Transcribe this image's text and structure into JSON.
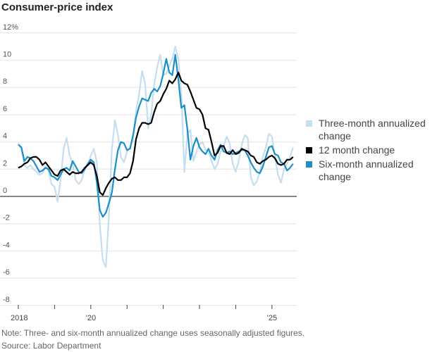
{
  "chart_data": {
    "type": "line",
    "title": "Consumer-price index",
    "xlabel": "",
    "ylabel": "",
    "start": "2018-01",
    "frequency": "monthly",
    "x_ticks": [
      "2018",
      "",
      "'20",
      "",
      "",
      "",
      "",
      "'25"
    ],
    "y_ticks": [
      "-8",
      "-6",
      "-4",
      "-2",
      "0",
      "2",
      "4",
      "6",
      "8",
      "10",
      "12%"
    ],
    "ylim": [
      -8,
      12
    ],
    "grid": true,
    "legend_position": "right",
    "series": [
      {
        "name": "Three-month annualized change",
        "color": "#c5def0",
        "values": [
          3.9,
          3.5,
          2.3,
          2.1,
          2.3,
          2.0,
          1.8,
          1.6,
          1.7,
          2.2,
          1.9,
          0.9,
          0.7,
          -0.4,
          1.2,
          3.5,
          4.3,
          3.0,
          2.4,
          1.2,
          0.9,
          1.2,
          2.0,
          2.3,
          3.0,
          3.5,
          2.5,
          -2.1,
          -4.7,
          -5.2,
          -1.5,
          3.5,
          5.6,
          4.5,
          2.9,
          2.5,
          3.3,
          3.6,
          4.2,
          6.3,
          7.5,
          9.2,
          8.3,
          5.0,
          6.0,
          8.2,
          9.5,
          10.4,
          8.9,
          9.0,
          9.6,
          10.1,
          11.0,
          10.1,
          7.6,
          1.8,
          4.6,
          4.9,
          2.6,
          3.3,
          3.8,
          4.0,
          3.4,
          3.4,
          2.6,
          2.0,
          2.4,
          3.3,
          3.7,
          4.4,
          3.9,
          2.4,
          1.8,
          2.6,
          3.8,
          4.5,
          4.3,
          1.4,
          0.8,
          1.1,
          1.8,
          2.9,
          3.6,
          4.6,
          4.4,
          2.9,
          1.6,
          1.0,
          2.0,
          2.4,
          2.9,
          3.6
        ]
      },
      {
        "name": "12 month change",
        "color": "#000000",
        "values": [
          2.1,
          2.2,
          2.4,
          2.5,
          2.8,
          2.9,
          2.9,
          2.7,
          2.3,
          2.5,
          2.2,
          1.9,
          1.6,
          1.5,
          1.9,
          2.0,
          1.8,
          1.6,
          1.8,
          1.7,
          1.7,
          1.8,
          2.1,
          2.3,
          2.5,
          2.3,
          1.5,
          0.3,
          0.1,
          0.6,
          1.0,
          1.3,
          1.4,
          1.2,
          1.2,
          1.4,
          1.4,
          1.7,
          2.6,
          4.2,
          5.0,
          5.4,
          5.4,
          5.3,
          5.4,
          6.2,
          6.8,
          7.0,
          7.5,
          7.9,
          8.5,
          8.3,
          8.6,
          9.1,
          8.5,
          8.3,
          8.2,
          7.7,
          7.1,
          6.5,
          6.4,
          6.0,
          5.0,
          4.9,
          4.0,
          3.0,
          3.2,
          3.7,
          3.7,
          3.2,
          3.1,
          3.4,
          3.1,
          3.2,
          3.5,
          3.4,
          3.3,
          3.0,
          2.9,
          2.5,
          2.4,
          2.6,
          2.7,
          2.9,
          3.0,
          2.8,
          2.4,
          2.3,
          2.4,
          2.7,
          2.7,
          2.9
        ]
      },
      {
        "name": "Six-month annualized change",
        "color": "#1b8fc6",
        "values": [
          3.8,
          3.6,
          2.6,
          2.9,
          2.8,
          2.6,
          2.2,
          1.8,
          1.9,
          2.1,
          2.0,
          1.5,
          1.4,
          1.2,
          1.6,
          2.0,
          2.1,
          1.9,
          2.6,
          2.2,
          1.8,
          1.7,
          2.0,
          2.4,
          2.7,
          2.5,
          1.0,
          -1.0,
          -1.5,
          -1.2,
          -0.5,
          0.3,
          2.0,
          3.4,
          4.0,
          3.9,
          3.4,
          3.5,
          4.5,
          5.8,
          6.6,
          7.2,
          7.1,
          7.0,
          7.6,
          7.9,
          7.7,
          8.1,
          9.0,
          10.1,
          9.1,
          8.9,
          10.4,
          8.6,
          6.5,
          6.7,
          4.9,
          2.7,
          3.7,
          4.3,
          3.6,
          3.3,
          3.1,
          3.5,
          3.0,
          2.7,
          3.4,
          3.8,
          3.3,
          3.2,
          3.3,
          3.1,
          3.2,
          3.3,
          3.4,
          3.4,
          3.0,
          2.5,
          2.1,
          1.8,
          1.7,
          2.2,
          2.9,
          3.6,
          3.7,
          3.1,
          3.0,
          2.5,
          2.4,
          1.9,
          2.1,
          2.4
        ]
      }
    ],
    "legend": [
      "Three-month annualized change",
      "12 month change",
      "Six-month annualized change"
    ],
    "note": "Note: Three- and six-month annualized change uses seasonally adjusted figures.",
    "source": "Source: Labor Department"
  }
}
